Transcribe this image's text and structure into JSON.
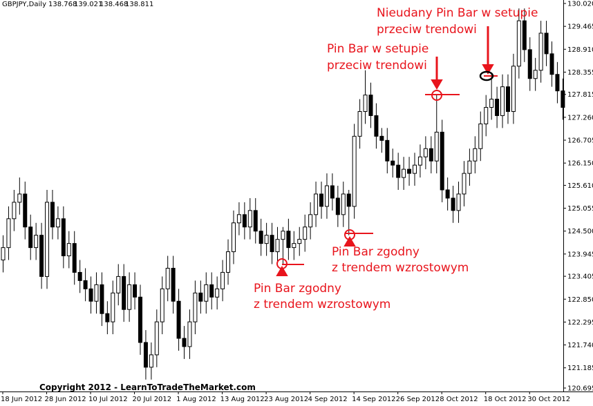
{
  "chart_data": {
    "type": "candlestick",
    "title": "GBPJPY,Daily",
    "quote": [
      "138.768",
      "139.021",
      "138.468",
      "138.811"
    ],
    "footer": "Copyright 2012 - LearnToTradeTheMarket.com",
    "annotations": [
      {
        "lines": [
          "Nieudany Pin Bar w setupie",
          "przeciw trendowi"
        ]
      },
      {
        "lines": [
          "Pin Bar w setupie",
          "przeciw trendowi"
        ]
      },
      {
        "lines": [
          "Pin Bar zgodny",
          "z trendem wzrostowym"
        ]
      },
      {
        "lines": [
          "Pin Bar zgodny",
          "z trendem wzrostowym"
        ]
      }
    ],
    "categories": [
      "18 Jun 2012",
      null,
      null,
      null,
      null,
      null,
      null,
      null,
      "28 Jun 2012",
      null,
      null,
      null,
      null,
      null,
      null,
      null,
      "10 Jul 2012",
      null,
      null,
      null,
      null,
      null,
      null,
      null,
      "20 Jul 2012",
      null,
      null,
      null,
      null,
      null,
      null,
      null,
      "1 Aug 2012",
      null,
      null,
      null,
      null,
      null,
      null,
      null,
      "13 Aug 2012",
      null,
      null,
      null,
      null,
      null,
      null,
      null,
      "23 Aug 2012",
      null,
      null,
      null,
      null,
      null,
      null,
      null,
      "4 Sep 2012",
      null,
      null,
      null,
      null,
      null,
      null,
      null,
      "14 Sep 2012",
      null,
      null,
      null,
      null,
      null,
      null,
      null,
      "26 Sep 2012",
      null,
      null,
      null,
      null,
      null,
      null,
      null,
      "8 Oct 2012",
      null,
      null,
      null,
      null,
      null,
      null,
      null,
      "18 Oct 2012",
      null,
      null,
      null,
      null,
      null,
      null,
      null,
      "30 Oct 2012",
      null,
      null,
      null,
      null,
      null,
      null
    ],
    "open": [
      123.8,
      124.1,
      124.8,
      125.2,
      125.4,
      124.6,
      124.1,
      124.4,
      123.4,
      125.2,
      124.6,
      124.8,
      123.9,
      124.2,
      123.5,
      123.3,
      123.1,
      122.8,
      123.2,
      122.5,
      122.3,
      123.0,
      123.4,
      122.6,
      123.2,
      122.9,
      121.8,
      121.2,
      121.5,
      122.3,
      123.1,
      123.6,
      122.8,
      121.9,
      121.7,
      122.3,
      123.0,
      122.8,
      123.2,
      122.9,
      123.1,
      123.5,
      124.0,
      124.7,
      124.9,
      124.6,
      125.0,
      124.5,
      124.2,
      124.4,
      124.0,
      124.3,
      124.5,
      124.1,
      124.2,
      124.3,
      124.6,
      124.9,
      125.4,
      125.1,
      125.6,
      125.3,
      124.9,
      125.4,
      125.1,
      126.8,
      127.4,
      127.8,
      127.3,
      126.8,
      126.7,
      126.2,
      126.1,
      125.8,
      126.0,
      125.9,
      126.1,
      126.3,
      126.5,
      126.2,
      126.9,
      125.5,
      125.3,
      125.0,
      125.4,
      125.9,
      126.2,
      126.5,
      127.1,
      127.5,
      127.7,
      127.3,
      128.0,
      127.4,
      128.5,
      129.6,
      128.9,
      128.2,
      128.4,
      129.3,
      128.8,
      128.3,
      127.9
    ],
    "high": [
      124.4,
      125.1,
      125.5,
      125.8,
      125.7,
      124.9,
      124.7,
      124.7,
      125.5,
      125.5,
      125.1,
      125.1,
      124.5,
      124.5,
      123.8,
      123.6,
      123.4,
      123.5,
      123.5,
      122.8,
      123.3,
      123.7,
      123.7,
      123.5,
      123.5,
      123.2,
      122.1,
      121.8,
      122.6,
      123.4,
      123.9,
      123.9,
      123.1,
      122.2,
      122.6,
      123.3,
      123.3,
      123.5,
      123.5,
      123.4,
      123.8,
      124.3,
      125.0,
      125.2,
      125.2,
      125.3,
      125.3,
      124.8,
      124.7,
      124.7,
      124.6,
      124.6,
      124.8,
      124.5,
      124.6,
      124.9,
      125.2,
      125.7,
      125.7,
      125.9,
      125.9,
      125.6,
      125.7,
      125.5,
      127.1,
      127.7,
      128.4,
      128.1,
      127.6,
      127.0,
      127.0,
      126.5,
      126.4,
      126.3,
      126.3,
      126.4,
      126.6,
      126.8,
      126.8,
      127.8,
      127.2,
      125.8,
      125.6,
      125.7,
      126.2,
      126.5,
      126.8,
      127.4,
      127.8,
      128.3,
      128.0,
      128.3,
      128.3,
      128.8,
      129.9,
      129.9,
      129.2,
      128.7,
      129.6,
      129.6,
      129.1,
      128.6,
      128.2
    ],
    "low": [
      123.5,
      123.8,
      124.5,
      124.9,
      124.3,
      123.8,
      123.8,
      123.1,
      123.1,
      124.3,
      124.3,
      123.6,
      123.6,
      123.2,
      123.0,
      122.8,
      122.5,
      122.5,
      122.2,
      122.0,
      122.0,
      122.7,
      122.3,
      122.3,
      122.6,
      121.5,
      120.9,
      120.9,
      121.2,
      122.0,
      122.8,
      122.5,
      121.6,
      121.4,
      121.4,
      122.0,
      122.5,
      122.5,
      122.6,
      122.6,
      122.8,
      123.2,
      123.7,
      124.4,
      124.3,
      124.3,
      124.2,
      123.9,
      123.9,
      123.7,
      123.7,
      123.7,
      123.8,
      123.8,
      123.9,
      124.0,
      124.3,
      124.6,
      124.8,
      124.8,
      125.0,
      124.6,
      124.6,
      124.4,
      124.8,
      126.5,
      127.1,
      127.0,
      126.5,
      126.4,
      125.9,
      125.8,
      125.5,
      125.5,
      125.6,
      125.6,
      125.8,
      126.0,
      125.9,
      125.9,
      125.2,
      125.0,
      124.7,
      124.7,
      125.1,
      125.6,
      125.9,
      126.2,
      126.8,
      127.2,
      127.0,
      127.0,
      127.1,
      127.1,
      128.2,
      128.6,
      127.9,
      127.9,
      128.1,
      128.5,
      128.0,
      127.6,
      127.2
    ],
    "close": [
      124.1,
      124.8,
      125.2,
      125.4,
      124.6,
      124.1,
      124.4,
      123.4,
      125.2,
      124.6,
      124.8,
      123.9,
      124.2,
      123.5,
      123.3,
      123.1,
      122.8,
      123.2,
      122.5,
      122.3,
      123.0,
      123.4,
      122.6,
      123.2,
      122.9,
      121.8,
      121.2,
      121.5,
      122.3,
      123.1,
      123.6,
      122.8,
      121.9,
      121.7,
      122.3,
      123.0,
      122.8,
      123.2,
      122.9,
      123.1,
      123.5,
      124.0,
      124.7,
      124.9,
      124.6,
      125.0,
      124.5,
      124.2,
      124.4,
      124.0,
      124.3,
      124.5,
      124.1,
      124.2,
      124.3,
      124.6,
      124.9,
      125.4,
      125.1,
      125.6,
      125.3,
      124.9,
      125.4,
      125.1,
      126.8,
      127.4,
      127.8,
      127.3,
      126.8,
      126.7,
      126.2,
      126.1,
      125.8,
      126.0,
      125.9,
      126.1,
      126.3,
      126.5,
      126.2,
      126.9,
      125.5,
      125.3,
      125.0,
      125.4,
      125.9,
      126.2,
      126.5,
      127.1,
      127.5,
      127.7,
      127.3,
      128.0,
      127.4,
      128.5,
      129.6,
      128.9,
      128.2,
      128.4,
      129.3,
      128.8,
      128.3,
      127.9,
      127.5
    ],
    "up_color": "#ffffff",
    "down_color": "#000000",
    "ylim": [
      120.611,
      130.104
    ],
    "yticks": [
      {
        "value": 130.02,
        "label": "130.020"
      },
      129.465,
      {
        "value": 128.91,
        "label": "128.910"
      },
      128.355,
      127.815,
      {
        "value": 127.26,
        "label": "127.260"
      },
      126.705,
      {
        "value": 126.15,
        "label": "126.150"
      },
      {
        "value": 125.61,
        "label": "125.610"
      },
      125.055,
      {
        "value": 124.5,
        "label": "124.500"
      },
      123.945,
      123.405,
      {
        "value": 122.85,
        "label": "122.850"
      },
      122.295,
      {
        "value": 121.74,
        "label": "121.740"
      },
      121.185,
      120.695
    ],
    "grid": false
  }
}
